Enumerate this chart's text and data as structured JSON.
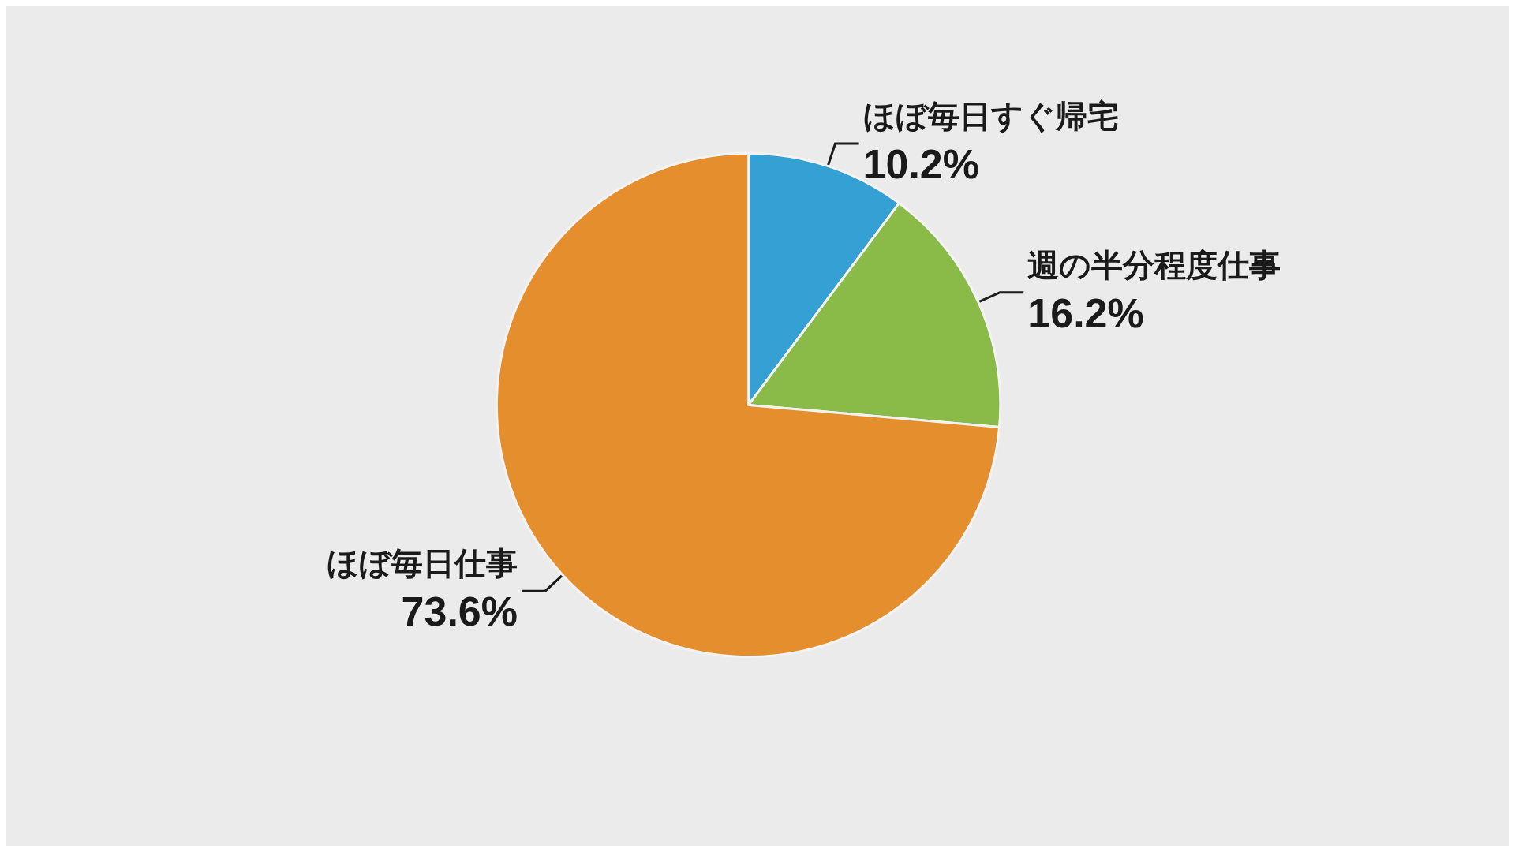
{
  "chart_data": {
    "type": "pie",
    "categories": [
      "ほぼ毎日すぐ帰宅",
      "週の半分程度仕事",
      "ほぼ毎日仕事"
    ],
    "values": [
      10.2,
      16.2,
      73.6
    ],
    "colors": [
      "#35a0d3",
      "#8aba48",
      "#e58e2d"
    ],
    "value_labels": [
      "10.2%",
      "16.2%",
      "73.6%"
    ],
    "legend": false
  }
}
